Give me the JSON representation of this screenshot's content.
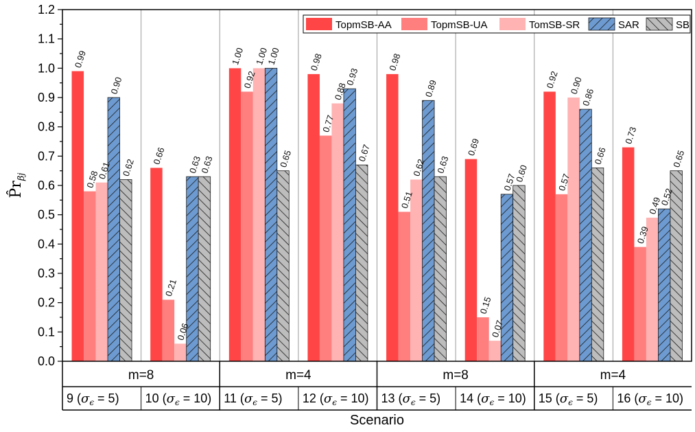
{
  "chart_data": {
    "type": "bar",
    "xlabel": "Scenario",
    "ylabel": "P̂r",
    "ylabel_subscript": "βj",
    "ylim": [
      0,
      1.2
    ],
    "yticks": [
      "0.0",
      "0.1",
      "0.2",
      "0.3",
      "0.4",
      "0.5",
      "0.6",
      "0.7",
      "0.8",
      "0.9",
      "1.0",
      "1.1",
      "1.2"
    ],
    "legend_position": "top-right",
    "grid": "vertical separators only",
    "groups": [
      {
        "label": "m=8",
        "scenarios": [
          0,
          1
        ]
      },
      {
        "label": "m=4",
        "scenarios": [
          2,
          3
        ]
      },
      {
        "label": "m=8",
        "scenarios": [
          4,
          5
        ]
      },
      {
        "label": "m=4",
        "scenarios": [
          6,
          7
        ]
      }
    ],
    "scenarios": [
      {
        "id": "9",
        "sigma": "5"
      },
      {
        "id": "10",
        "sigma": "10"
      },
      {
        "id": "11",
        "sigma": "5"
      },
      {
        "id": "12",
        "sigma": "10"
      },
      {
        "id": "13",
        "sigma": "5"
      },
      {
        "id": "14",
        "sigma": "10"
      },
      {
        "id": "15",
        "sigma": "5"
      },
      {
        "id": "16",
        "sigma": "10"
      }
    ],
    "series": [
      {
        "name": "TopmSB-AA",
        "color": "#ff4545",
        "pattern": "none",
        "values": [
          0.99,
          0.66,
          1.0,
          0.98,
          0.98,
          0.69,
          0.92,
          0.73
        ],
        "labels": [
          "0.99",
          "0.66",
          "1.00",
          "0.98",
          "0.98",
          "0.69",
          "0.92",
          "0.73"
        ]
      },
      {
        "name": "TopmSB-UA",
        "color": "#ff7f7f",
        "pattern": "none",
        "values": [
          0.58,
          0.21,
          0.92,
          0.77,
          0.51,
          0.15,
          0.57,
          0.39
        ],
        "labels": [
          "0.58",
          "0.21",
          "0.92",
          "0.77",
          "0.51",
          "0.15",
          "0.57",
          "0.39"
        ]
      },
      {
        "name": "TomSB-SR",
        "color": "#ffb3b3",
        "pattern": "none",
        "values": [
          0.61,
          0.06,
          1.0,
          0.88,
          0.62,
          0.07,
          0.9,
          0.49
        ],
        "labels": [
          "0.61",
          "0.06",
          "1.00",
          "0.88",
          "0.62",
          "0.07",
          "0.90",
          "0.49"
        ]
      },
      {
        "name": "SAR",
        "color": "#6d9bd1",
        "pattern": "hatch-forward",
        "values": [
          0.9,
          0.63,
          1.0,
          0.93,
          0.89,
          0.57,
          0.86,
          0.52
        ],
        "labels": [
          "0.90",
          "0.63",
          "1.00",
          "0.93",
          "0.89",
          "0.57",
          "0.86",
          "0.52"
        ]
      },
      {
        "name": "SB",
        "color": "#bdbdbd",
        "pattern": "hatch-back",
        "values": [
          0.62,
          0.63,
          0.65,
          0.67,
          0.63,
          0.6,
          0.66,
          0.65
        ],
        "labels": [
          "0.62",
          "0.63",
          "0.65",
          "0.67",
          "0.63",
          "0.60",
          "0.66",
          "0.65"
        ]
      }
    ]
  }
}
